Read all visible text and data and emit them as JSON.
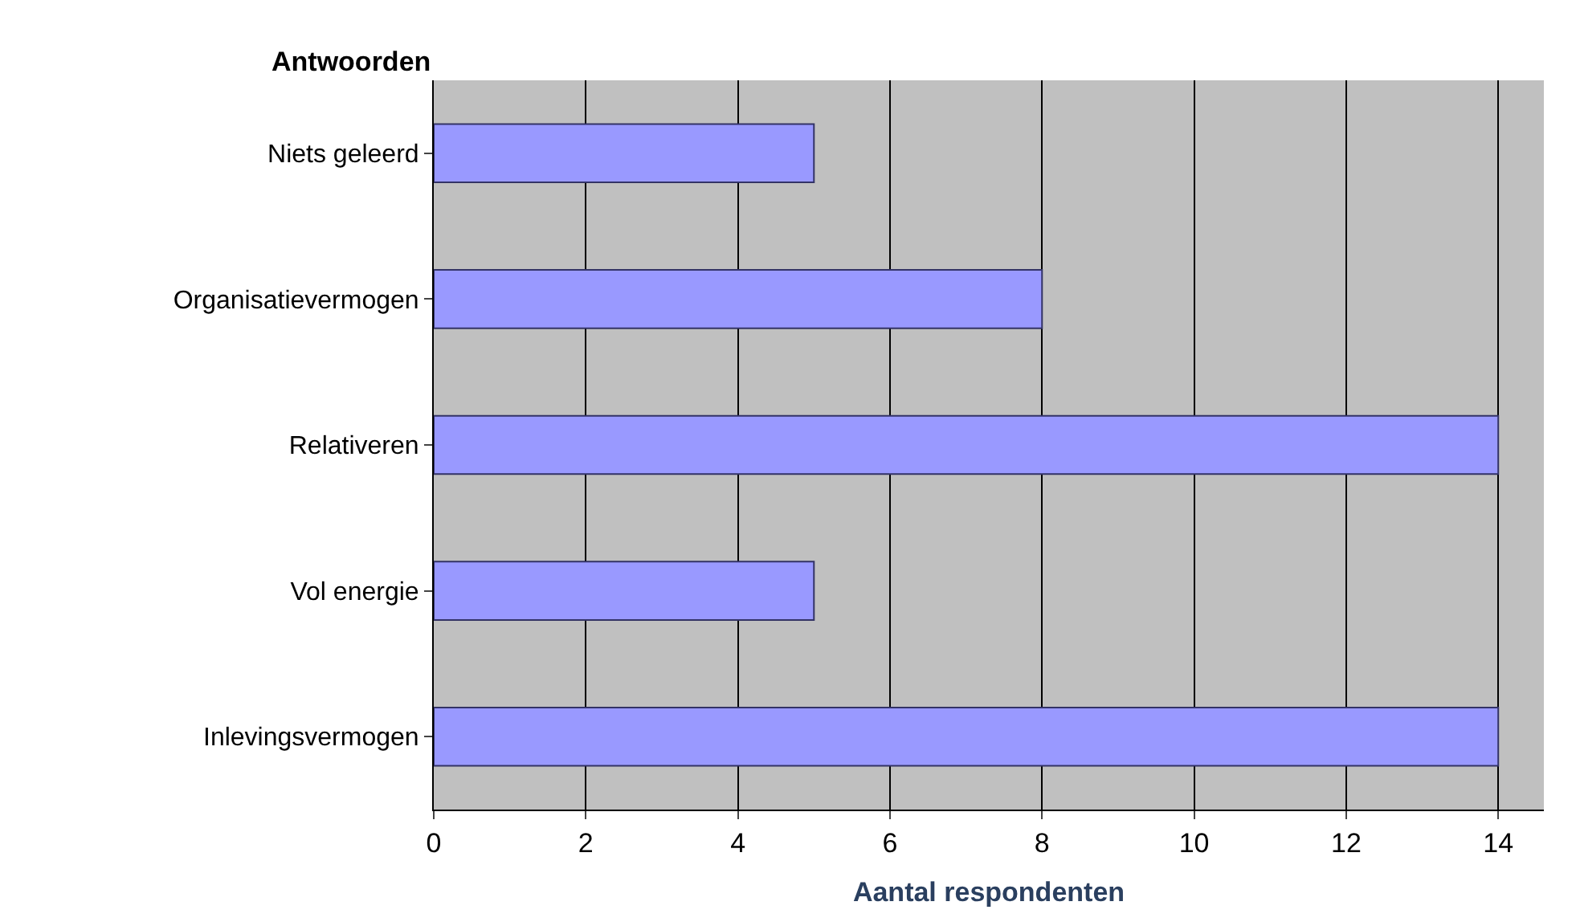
{
  "chart_data": {
    "type": "bar",
    "orientation": "horizontal",
    "ylabel": "Antwoorden",
    "xlabel": "Aantal respondenten",
    "categories": [
      "Niets geleerd",
      "Organisatievermogen",
      "Relativeren",
      "Vol energie",
      "Inlevingsvermogen"
    ],
    "values": [
      5,
      8,
      14,
      5,
      14
    ],
    "color": "#9999ff",
    "xlim": [
      0,
      14.6
    ],
    "xticks": [
      0,
      2,
      4,
      6,
      8,
      10,
      12,
      14
    ],
    "grid": "x",
    "legend": false
  }
}
